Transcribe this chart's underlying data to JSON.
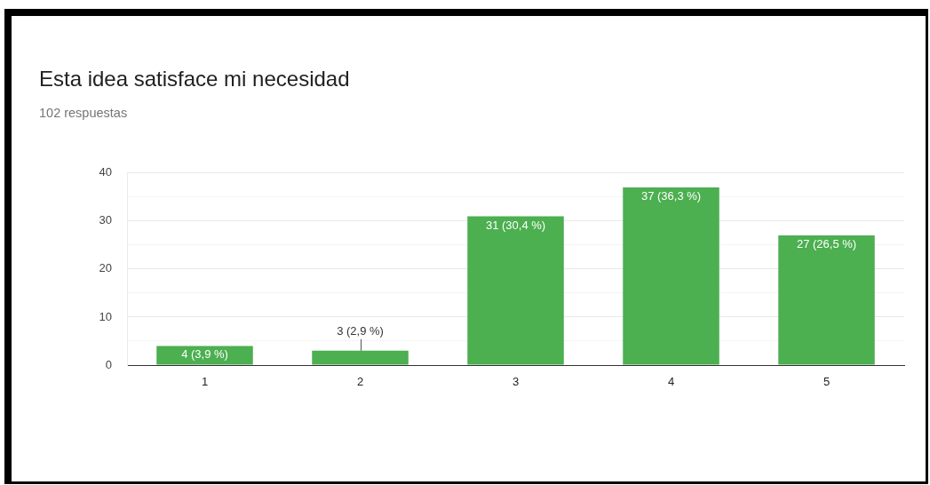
{
  "chart_data": {
    "type": "bar",
    "title": "Esta idea satisface mi necesidad",
    "subtitle": "102 respuestas",
    "categories": [
      "1",
      "2",
      "3",
      "4",
      "5"
    ],
    "values": [
      4,
      3,
      31,
      37,
      27
    ],
    "color": "#4caf50",
    "value_labels": [
      "4 (3,9 %)",
      "3 (2,9 %)",
      "31 (30,4 %)",
      "37 (36,3 %)",
      "27 (26,5 %)"
    ],
    "ylim": [
      0,
      40
    ],
    "yticks": [
      0,
      {
        "value": 5,
        "label": null
      },
      10,
      {
        "value": 15,
        "label": null
      },
      20,
      {
        "value": 25,
        "label": null
      },
      30,
      {
        "value": 35,
        "label": null
      },
      40
    ],
    "grid": "y"
  }
}
